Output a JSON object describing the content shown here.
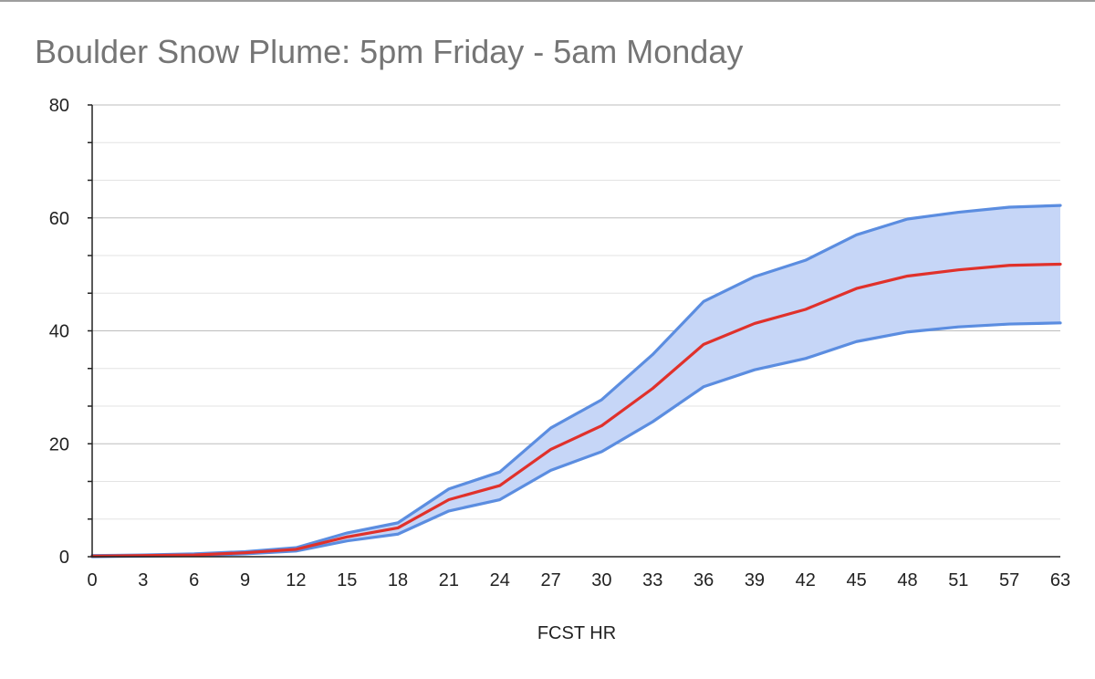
{
  "chart_data": {
    "type": "area",
    "title": "Boulder Snow Plume: 5pm Friday - 5am Monday",
    "xlabel": "FCST HR",
    "ylabel": "",
    "categories": [
      "0",
      "3",
      "6",
      "9",
      "12",
      "15",
      "18",
      "21",
      "24",
      "27",
      "30",
      "33",
      "36",
      "39",
      "42",
      "45",
      "48",
      "51",
      "57",
      "63"
    ],
    "ylim": [
      0,
      80
    ],
    "yticks": [
      0,
      20,
      40,
      60,
      80
    ],
    "grid": true,
    "legend": "none",
    "series": [
      {
        "role": "upper",
        "color": "#5b8de0",
        "values": [
          0.2,
          0.3,
          0.5,
          0.9,
          1.6,
          4.2,
          6.0,
          12.0,
          15.0,
          22.8,
          27.8,
          35.8,
          45.2,
          49.6,
          52.5,
          57.0,
          59.8,
          61.0,
          61.9,
          62.2
        ]
      },
      {
        "role": "median",
        "color": "#e0312b",
        "values": [
          0.1,
          0.2,
          0.3,
          0.7,
          1.3,
          3.5,
          5.1,
          10.1,
          12.6,
          19.0,
          23.2,
          29.8,
          37.6,
          41.3,
          43.8,
          47.5,
          49.7,
          50.8,
          51.6,
          51.8
        ]
      },
      {
        "role": "lower",
        "color": "#5b8de0",
        "values": [
          0.0,
          0.1,
          0.2,
          0.5,
          1.0,
          2.8,
          4.0,
          8.1,
          10.1,
          15.3,
          18.6,
          23.9,
          30.1,
          33.1,
          35.1,
          38.1,
          39.8,
          40.7,
          41.2,
          41.4
        ]
      }
    ],
    "fill_color": "#c6d6f7"
  }
}
